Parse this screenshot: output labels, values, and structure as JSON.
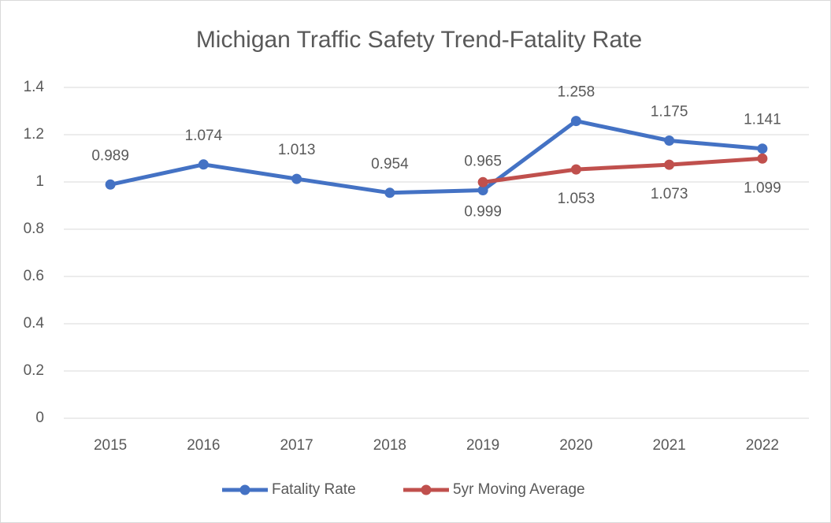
{
  "chart_data": {
    "type": "line",
    "title": "Michigan Traffic Safety Trend-Fatality Rate",
    "categories": [
      "2015",
      "2016",
      "2017",
      "2018",
      "2019",
      "2020",
      "2021",
      "2022"
    ],
    "series": [
      {
        "name": "Fatality Rate",
        "color": "#4472c4",
        "values": [
          0.989,
          1.074,
          1.013,
          0.954,
          0.965,
          1.258,
          1.175,
          1.141
        ]
      },
      {
        "name": "5yr Moving Average",
        "color": "#c0504d",
        "values": [
          null,
          null,
          null,
          null,
          0.999,
          1.053,
          1.073,
          1.099
        ]
      }
    ],
    "ylim": [
      0,
      1.4
    ],
    "yticks": [
      0,
      0.2,
      0.4,
      0.6,
      0.8,
      1,
      1.2,
      1.4
    ],
    "grid": true,
    "legend": "bottom"
  }
}
